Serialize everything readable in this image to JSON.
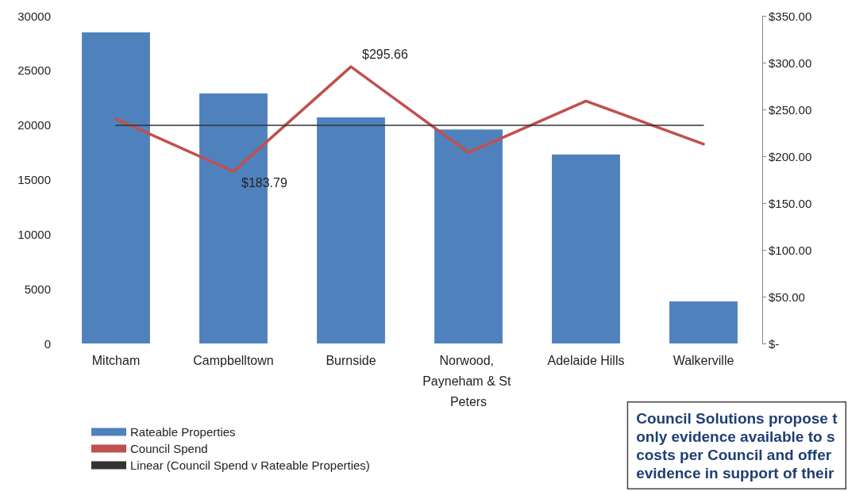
{
  "chart_data": {
    "type": "bar",
    "categories": [
      "Mitcham",
      "Campbelltown",
      "Burnside",
      "Norwood, Payneham & St Peters",
      "Adelaide Hills",
      "Walkerville"
    ],
    "series": [
      {
        "name": "Rateable Properties",
        "color": "#4f81bd",
        "values": [
          28500,
          22900,
          20700,
          19600,
          17300,
          3850
        ]
      },
      {
        "name": "Council Spend",
        "type": "line",
        "axis": "y2",
        "color": "#c0504d",
        "values": [
          240,
          183.79,
          295.66,
          204,
          259,
          213
        ],
        "value_labels": [
          null,
          "$183.79",
          "$295.66",
          null,
          null,
          null
        ]
      },
      {
        "name": "Linear (Council Spend v Rateable Properties)",
        "type": "line",
        "axis": "y2",
        "color": "#333333",
        "x": [
          "Mitcham",
          "Walkerville"
        ],
        "values": [
          233,
          233
        ]
      }
    ],
    "ylim": [
      0,
      30000
    ],
    "yticks": [
      0,
      5000,
      10000,
      15000,
      20000,
      25000,
      30000
    ],
    "y2lim": [
      0,
      350
    ],
    "y2ticks": [
      {
        "value": 0,
        "label": "$-"
      },
      {
        "value": 50,
        "label": "$50.00"
      },
      {
        "value": 100,
        "label": "$100.00"
      },
      {
        "value": 150,
        "label": "$150.00"
      },
      {
        "value": 200,
        "label": "$200.00"
      },
      {
        "value": 250,
        "label": "$250.00"
      },
      {
        "value": 300,
        "label": "$300.00"
      },
      {
        "value": 350,
        "label": "$350.00"
      }
    ],
    "grid": false,
    "legend": "bottom left",
    "marker": "none",
    "line_style": "solid",
    "annotations": [
      "Council Solutions propose t\nonly evidence available to s\ncosts per Council and offer\nevidence in support of their"
    ]
  }
}
